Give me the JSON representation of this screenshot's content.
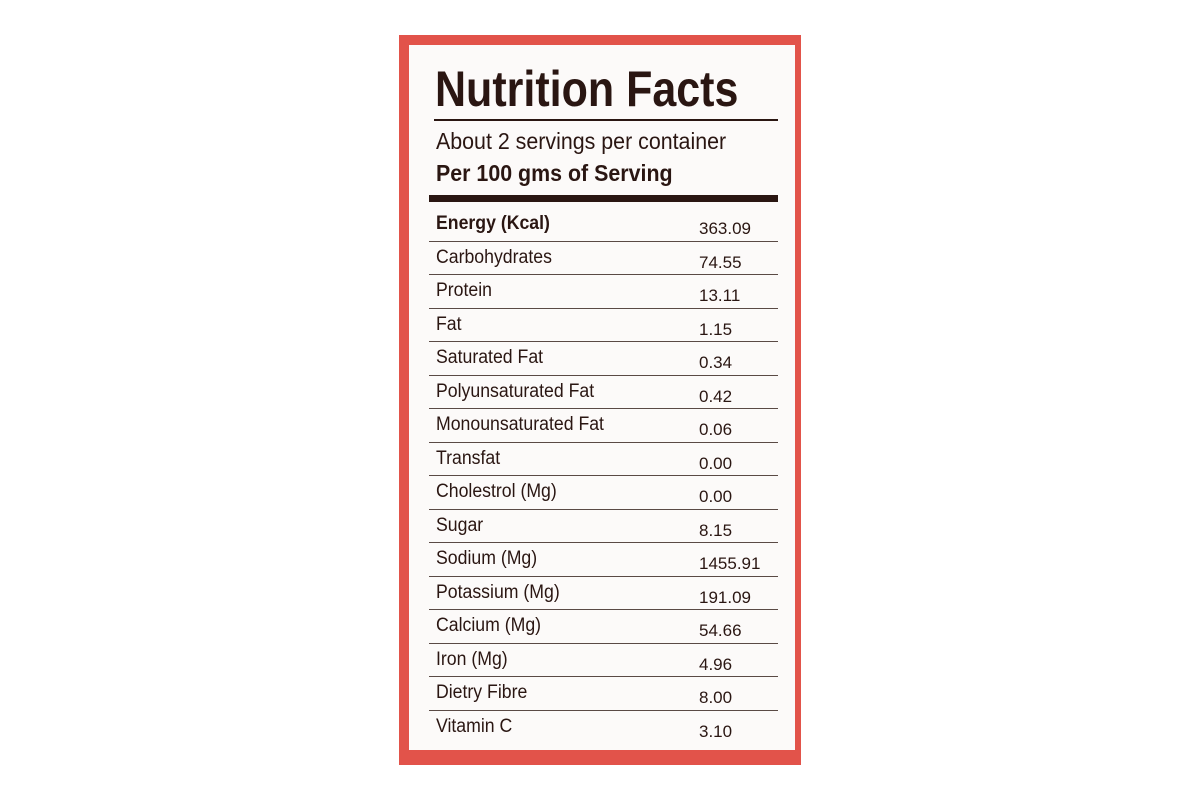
{
  "label": {
    "title": "Nutrition Facts",
    "servings_per_container": "About 2 servings per container",
    "serving_basis": "Per 100 gms of Serving",
    "nutrients": [
      {
        "name": "Energy (Kcal)",
        "value": "363.09"
      },
      {
        "name": "Carbohydrates",
        "value": "74.55"
      },
      {
        "name": "Protein",
        "value": "13.11"
      },
      {
        "name": "Fat",
        "value": "1.15"
      },
      {
        "name": "Saturated Fat",
        "value": "0.34"
      },
      {
        "name": "Polyunsaturated Fat",
        "value": "0.42"
      },
      {
        "name": "Monounsaturated Fat",
        "value": "0.06"
      },
      {
        "name": "Transfat",
        "value": "0.00"
      },
      {
        "name": "Cholestrol (Mg)",
        "value": "0.00"
      },
      {
        "name": "Sugar",
        "value": "8.15"
      },
      {
        "name": "Sodium (Mg)",
        "value": "1455.91"
      },
      {
        "name": "Potassium (Mg)",
        "value": "191.09"
      },
      {
        "name": "Calcium (Mg)",
        "value": "54.66"
      },
      {
        "name": "Iron (Mg)",
        "value": "4.96"
      },
      {
        "name": "Dietry Fibre",
        "value": "8.00"
      },
      {
        "name": "Vitamin C",
        "value": "3.10"
      }
    ]
  },
  "colors": {
    "border_red": "#e2534a",
    "card_bg": "#fcfaf9",
    "ink": "#2a1612"
  }
}
